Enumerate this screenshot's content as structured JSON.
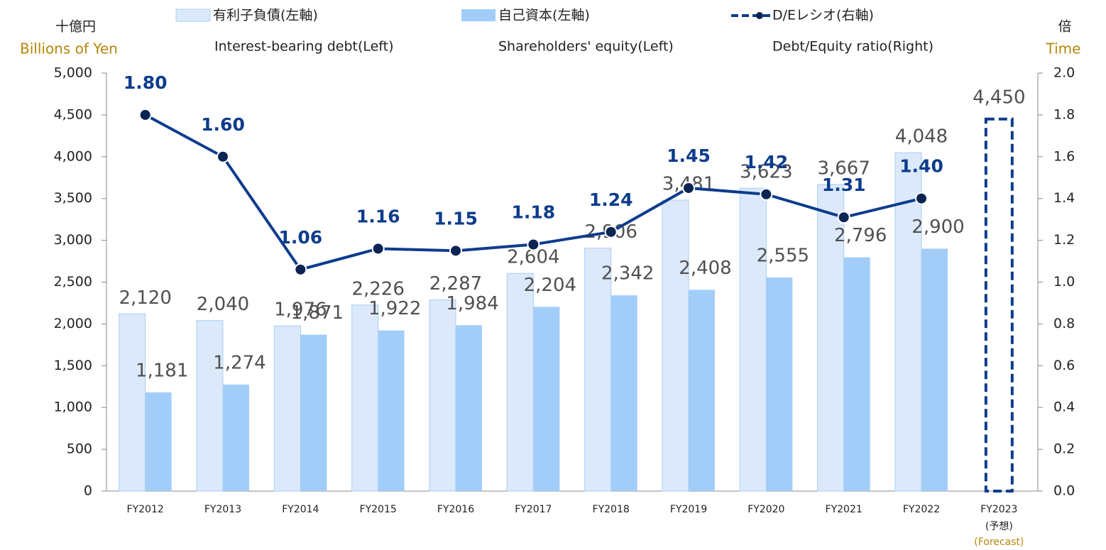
{
  "chart_data": {
    "type": "bar-line",
    "y_unit_ja": "十億円",
    "y_unit_en": "Billions of Yen",
    "y2_unit_ja": "倍",
    "y2_unit_en": "Time",
    "categories": [
      "FY2012",
      "FY2013",
      "FY2014",
      "FY2015",
      "FY2016",
      "FY2017",
      "FY2018",
      "FY2019",
      "FY2020",
      "FY2021",
      "FY2022",
      "FY2023"
    ],
    "forecast_note": [
      "(予想)",
      "(Forecast)"
    ],
    "series": [
      {
        "name": "有利子負債(左軸)",
        "name_en": "Interest-bearing debt(Left)",
        "color": "#dbe9fb",
        "stroke": "#a9cdf5",
        "type": "bar",
        "values": [
          2120,
          2040,
          1976,
          2226,
          2287,
          2604,
          2906,
          3481,
          3623,
          3667,
          4048,
          4450
        ],
        "value_labels": [
          "2,120",
          "2,040",
          "1,976",
          "2,226",
          "2,287",
          "2,604",
          "2,906",
          "3,481",
          "3,623",
          "3,667",
          "4,048",
          "4,450"
        ]
      },
      {
        "name": "自己資本(左軸)",
        "name_en": "Shareholders' equity(Left)",
        "color": "#a3cdf9",
        "type": "bar",
        "values": [
          1181,
          1274,
          1871,
          1922,
          1984,
          2204,
          2342,
          2408,
          2555,
          2796,
          2900,
          null
        ],
        "value_labels": [
          "1,181",
          "1,274",
          "1,871",
          "1,922",
          "1,984",
          "2,204",
          "2,342",
          "2,408",
          "2,555",
          "2,796",
          "2,900",
          null
        ]
      },
      {
        "name": "D/Eレシオ(右軸)",
        "name_en": "Debt/Equity ratio(Right)",
        "color": "#0d3c8c",
        "type": "line",
        "axis": "y2",
        "values": [
          1.8,
          1.6,
          1.06,
          1.16,
          1.15,
          1.18,
          1.24,
          1.45,
          1.42,
          1.31,
          1.4,
          null
        ],
        "value_labels": [
          "1.80",
          "1.60",
          "1.06",
          "1.16",
          "1.15",
          "1.18",
          "1.24",
          "1.45",
          "1.42",
          "1.31",
          "1.40",
          null
        ]
      }
    ],
    "ylim": [
      0,
      5000
    ],
    "yticks": [
      0,
      500,
      {
        "value": 1000,
        "label": "1,000"
      },
      {
        "value": 1500,
        "label": "1,500"
      },
      {
        "value": 2000,
        "label": "2,000"
      },
      {
        "value": 2500,
        "label": "2,500"
      },
      {
        "value": 3000,
        "label": "3,000"
      },
      {
        "value": 3500,
        "label": "3,500"
      },
      {
        "value": 4000,
        "label": "4,000"
      },
      {
        "value": 4500,
        "label": "4,500"
      },
      {
        "value": 5000,
        "label": "5,000"
      }
    ],
    "y2lim": [
      0,
      2
    ],
    "y2ticks": [
      {
        "value": 0,
        "label": "0.0"
      },
      0.2,
      0.4,
      0.6,
      0.8,
      {
        "value": 1,
        "label": "1.0"
      },
      1.2,
      1.4,
      1.6,
      1.8,
      {
        "value": 2,
        "label": "2.0"
      }
    ]
  }
}
